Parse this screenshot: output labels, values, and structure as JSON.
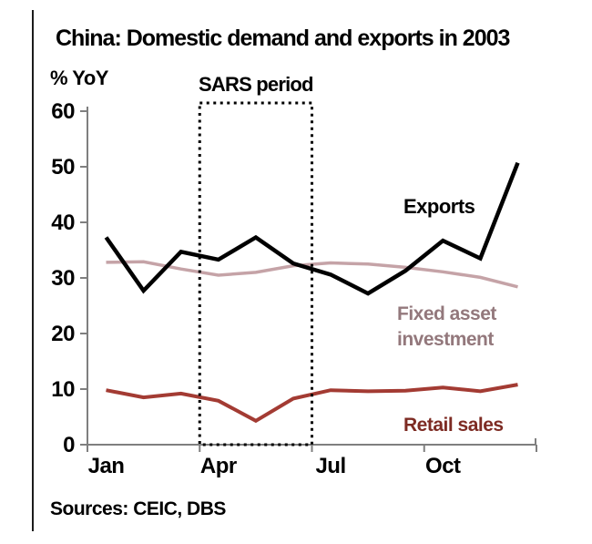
{
  "figure": {
    "title": "China: Domestic demand and exports in 2003",
    "sources": "Sources: CEIC, DBS"
  },
  "chart_data": {
    "type": "line",
    "title": "China: Domestic demand and exports in 2003",
    "y_unit": "% YoY",
    "months": [
      "Jan",
      "Feb",
      "Mar",
      "Apr",
      "May",
      "Jun",
      "Jul",
      "Aug",
      "Sep",
      "Oct",
      "Nov",
      "Dec"
    ],
    "x_tick_labels": [
      "Jan",
      "Apr",
      "Jul",
      "Oct"
    ],
    "y_ticks": [
      0,
      10,
      20,
      30,
      40,
      50,
      60
    ],
    "ylim": [
      0,
      61
    ],
    "grid": false,
    "legend_position": "inline-labels",
    "series": [
      {
        "name": "Exports",
        "label_lines": [
          "Exports"
        ],
        "color": "#000000",
        "label_color": "#000000",
        "values": [
          37.3,
          27.7,
          34.7,
          33.3,
          37.3,
          32.6,
          30.6,
          27.2,
          31.3,
          36.7,
          33.5,
          50.7
        ]
      },
      {
        "name": "Fixed asset investment",
        "label_lines": [
          "Fixed asset",
          "investment"
        ],
        "color": "#c5a3a7",
        "label_color": "#93787c",
        "values": [
          32.8,
          32.9,
          31.6,
          30.5,
          31.0,
          32.2,
          32.7,
          32.5,
          31.9,
          31.1,
          30.1,
          28.4
        ]
      },
      {
        "name": "Retail sales",
        "label_lines": [
          "Retail sales"
        ],
        "color": "#a33b33",
        "label_color": "#7d2b23",
        "values": [
          9.8,
          8.5,
          9.2,
          7.9,
          4.3,
          8.3,
          9.8,
          9.6,
          9.7,
          10.3,
          9.6,
          10.8
        ]
      }
    ],
    "annotation": {
      "label": "SARS period",
      "from_month": "Apr",
      "to_month": "Jun"
    },
    "axis_color": "#7f7f7f"
  }
}
